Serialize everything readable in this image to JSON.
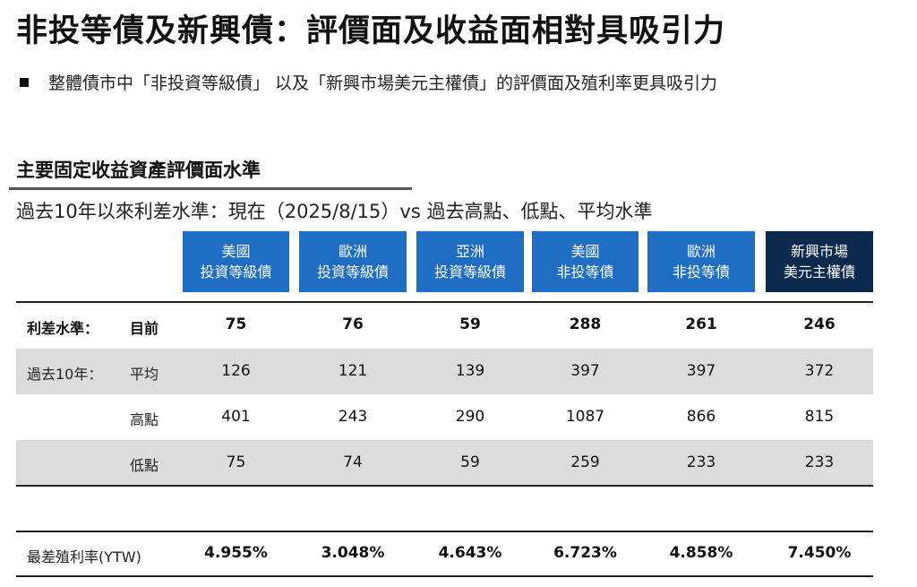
{
  "title": "非投等債及新興債：評價面及收益面相對具吸引力",
  "bullet": "整體債市中「非投資等級債」 以及「新興市場美元主權債」的評價面及殖利率更具吸引力",
  "section_title": "主要固定收益資產評價面水準",
  "caption": "過去10年以來利差水準：現在（2025/8/15）vs 過去高點、低點、平均水準",
  "columns": [
    {
      "line1": "美國",
      "line2": "投資等級債"
    },
    {
      "line1": "歐洲",
      "line2": "投資等級債"
    },
    {
      "line1": "亞洲",
      "line2": "投資等級債"
    },
    {
      "line1": "美國",
      "line2": "非投等債"
    },
    {
      "line1": "歐洲",
      "line2": "非投等債"
    },
    {
      "line1": "新興市場",
      "line2": "美元主權債"
    }
  ],
  "group_labels": {
    "spread": "利差水準：",
    "past10": "過去10年："
  },
  "rows": [
    {
      "label": "目前",
      "values": [
        "75",
        "76",
        "59",
        "288",
        "261",
        "246"
      ]
    },
    {
      "label": "平均",
      "values": [
        "126",
        "121",
        "139",
        "397",
        "397",
        "372"
      ]
    },
    {
      "label": "高點",
      "values": [
        "401",
        "243",
        "290",
        "1087",
        "866",
        "815"
      ]
    },
    {
      "label": "低點",
      "values": [
        "75",
        "74",
        "59",
        "259",
        "233",
        "233"
      ]
    }
  ],
  "ytw": {
    "label": "最差殖利率(YTW)",
    "values": [
      "4.955%",
      "3.048%",
      "4.643%",
      "6.723%",
      "4.858%",
      "7.450%"
    ]
  }
}
